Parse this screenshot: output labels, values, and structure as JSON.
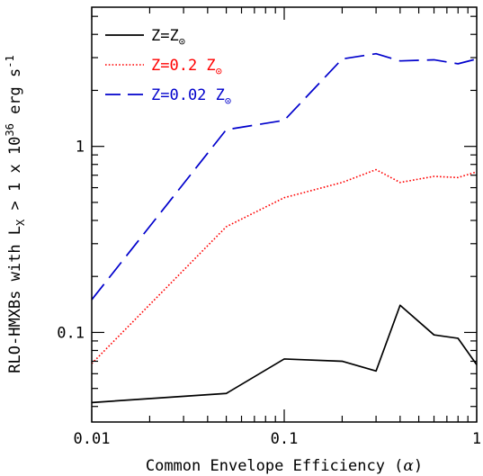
{
  "chart_data": {
    "type": "line",
    "xscale": "log",
    "yscale": "log",
    "xlim": [
      0.01,
      1
    ],
    "ylim": [
      0.033,
      5.6
    ],
    "xlabel_parts": {
      "main": "Common Envelope Efficiency (",
      "alpha": "α",
      "close": ")"
    },
    "ylabel_parts": {
      "pre": "RLO-HMXBs with L",
      "sub": "X",
      "mid": " > 1 x 10",
      "sup": "36",
      "post": " erg s",
      "sup2": "-1"
    },
    "x_ticks": [
      {
        "value": 0.01,
        "label": "0.01"
      },
      {
        "value": 0.1,
        "label": "0.1"
      },
      {
        "value": 1,
        "label": "1"
      }
    ],
    "y_ticks": [
      {
        "value": 0.1,
        "label": "0.1"
      },
      {
        "value": 1,
        "label": "1"
      }
    ],
    "series": [
      {
        "name": "Z=Z⊙",
        "legend_text": "Z=Z",
        "legend_suffix": "⊙",
        "color": "#000000",
        "dash": "solid",
        "x": [
          0.01,
          0.05,
          0.1,
          0.2,
          0.3,
          0.4,
          0.6,
          0.8,
          1.0
        ],
        "y": [
          0.042,
          0.047,
          0.072,
          0.07,
          0.062,
          0.14,
          0.097,
          0.093,
          0.067
        ]
      },
      {
        "name": "Z=0.2 Z⊙",
        "legend_text": "Z=0.2 Z",
        "legend_suffix": "⊙",
        "color": "#ff0000",
        "dash": "dotted",
        "x": [
          0.01,
          0.05,
          0.1,
          0.2,
          0.3,
          0.4,
          0.6,
          0.8,
          1.0
        ],
        "y": [
          0.068,
          0.37,
          0.53,
          0.64,
          0.75,
          0.64,
          0.69,
          0.68,
          0.73
        ]
      },
      {
        "name": "Z=0.02 Z⊙",
        "legend_text": "Z=0.02 Z",
        "legend_suffix": "⊙",
        "color": "#0000cc",
        "dash": "dashed",
        "x": [
          0.01,
          0.05,
          0.1,
          0.2,
          0.3,
          0.4,
          0.6,
          0.8,
          1.0
        ],
        "y": [
          0.15,
          1.23,
          1.38,
          2.95,
          3.15,
          2.88,
          2.92,
          2.78,
          2.95
        ]
      }
    ],
    "grid": false,
    "legend_position": "top-left"
  }
}
